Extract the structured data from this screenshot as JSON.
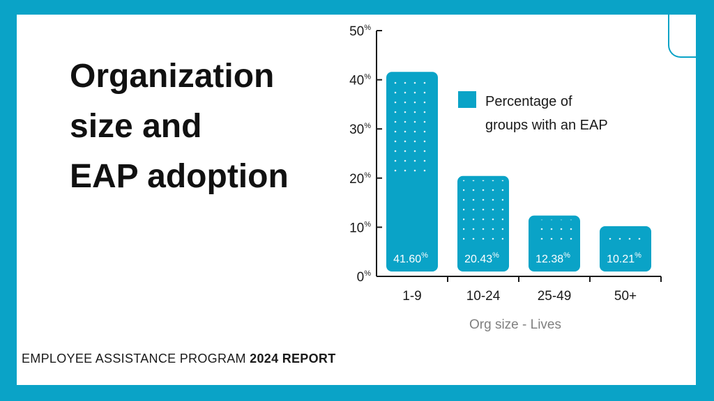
{
  "title_lines": [
    "Organization",
    "size and",
    "EAP adoption"
  ],
  "footer": {
    "prefix": "EMPLOYEE ASSISTANCE PROGRAM",
    "bold": "2024 REPORT"
  },
  "colors": {
    "accent": "#0aa3c7",
    "text": "#1a1a1a",
    "muted": "#808080"
  },
  "chart_data": {
    "type": "bar",
    "categories": [
      "1-9",
      "10-24",
      "25-49",
      "50+"
    ],
    "values": [
      41.6,
      20.43,
      12.38,
      10.21
    ],
    "value_labels": [
      "41.60",
      "20.43",
      "12.38",
      "10.21"
    ],
    "value_suffix": "%",
    "yticks": [
      "0",
      "10",
      "20",
      "30",
      "40",
      "50"
    ],
    "ytick_suffix": "%",
    "ylim": [
      0,
      50
    ],
    "xlabel": "Org size - Lives",
    "ylabel": "",
    "legend": [
      "Percentage of",
      "groups with an EAP"
    ],
    "legend_position": "top-right",
    "grid": false
  }
}
